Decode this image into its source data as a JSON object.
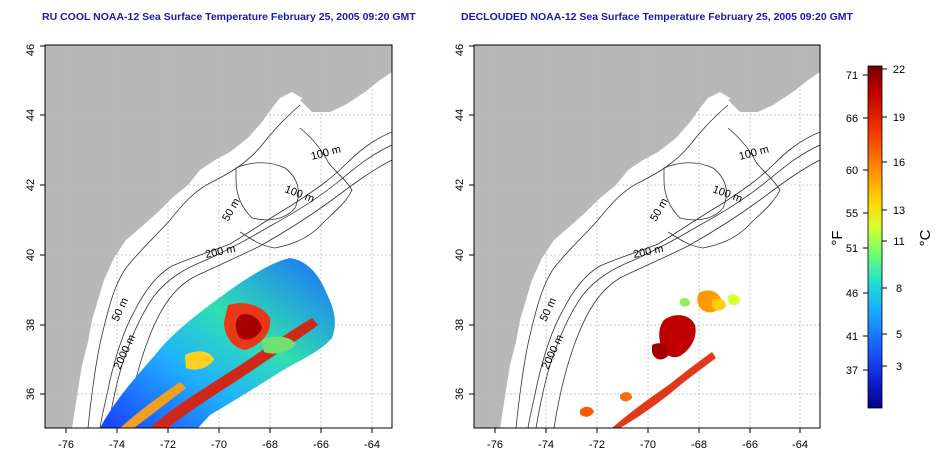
{
  "panels": [
    {
      "title": "RU COOL NOAA-12 Sea Surface Temperature February 25, 2005 09:20 GMT",
      "contour_labels": [
        "100 m",
        "100 m",
        "50 m",
        "200 m",
        "50 m",
        "2000 m"
      ]
    },
    {
      "title": "DECLOUDED NOAA-12 Sea Surface Temperature February 25, 2005 09:20 GMT",
      "contour_labels": [
        "100 m",
        "100 m",
        "50 m",
        "200 m",
        "50 m",
        "2000 m"
      ]
    }
  ],
  "axes": {
    "lon_ticks": [
      "-76",
      "-74",
      "-72",
      "-70",
      "-68",
      "-66",
      "-64"
    ],
    "lat_ticks": [
      "36",
      "38",
      "40",
      "42",
      "44",
      "46"
    ],
    "grid": "dotted"
  },
  "colorbar": {
    "fahrenheit_ticks": [
      "71",
      "66",
      "60",
      "55",
      "51",
      "46",
      "41",
      "37"
    ],
    "celsius_ticks": [
      "22",
      "19",
      "16",
      "13",
      "11",
      "8",
      "5",
      "3"
    ],
    "fahrenheit_unit": "°F",
    "celsius_unit": "°C",
    "colors": [
      "#8b0000",
      "#d01010",
      "#ff3b00",
      "#ff8a00",
      "#ffd000",
      "#d8ff30",
      "#70ff70",
      "#20e0d0",
      "#1aa8ff",
      "#1a60ff",
      "#1020d0",
      "#00008b"
    ]
  },
  "colors": {
    "land": "#b8b8b8",
    "title": "#1a1aa8"
  }
}
